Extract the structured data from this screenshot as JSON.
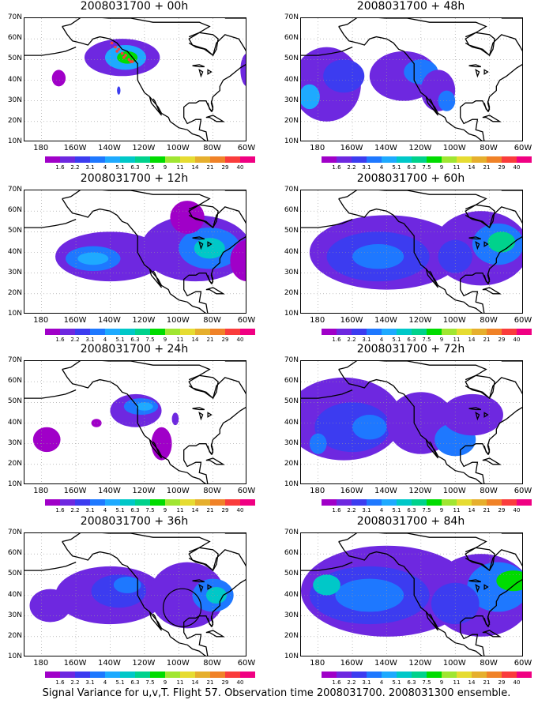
{
  "colorbar": {
    "labels": [
      "1.6",
      "2.2",
      "3.1",
      "4",
      "5.1",
      "6.3",
      "7.5",
      "9",
      "11",
      "14",
      "21",
      "29",
      "40"
    ],
    "colors": [
      "#a000c8",
      "#6e28e0",
      "#3c3cf0",
      "#1e78ff",
      "#1eaaff",
      "#00c8c8",
      "#00d28c",
      "#00dc00",
      "#a0e632",
      "#e6dc32",
      "#e6af2d",
      "#f08228",
      "#fa3c3c",
      "#f00082"
    ]
  },
  "y_labels": [
    "70N",
    "60N",
    "50N",
    "40N",
    "30N",
    "20N",
    "10N"
  ],
  "x_labels": [
    "180",
    "160W",
    "140W",
    "120W",
    "100W",
    "80W",
    "60W"
  ],
  "panels": [
    {
      "title": "2008031700 + 00h",
      "intensity": 0
    },
    {
      "title": "2008031700 + 48h",
      "intensity": 4
    },
    {
      "title": "2008031700 + 12h",
      "intensity": 1
    },
    {
      "title": "2008031700 + 60h",
      "intensity": 5
    },
    {
      "title": "2008031700 + 24h",
      "intensity": 2
    },
    {
      "title": "2008031700 + 72h",
      "intensity": 6
    },
    {
      "title": "2008031700 + 36h",
      "intensity": 3
    },
    {
      "title": "2008031700 + 84h",
      "intensity": 7
    }
  ],
  "caption": "Signal Variance for u,v,T. Flight 57. Observation time 2008031700. 2008031300 ensemble."
}
